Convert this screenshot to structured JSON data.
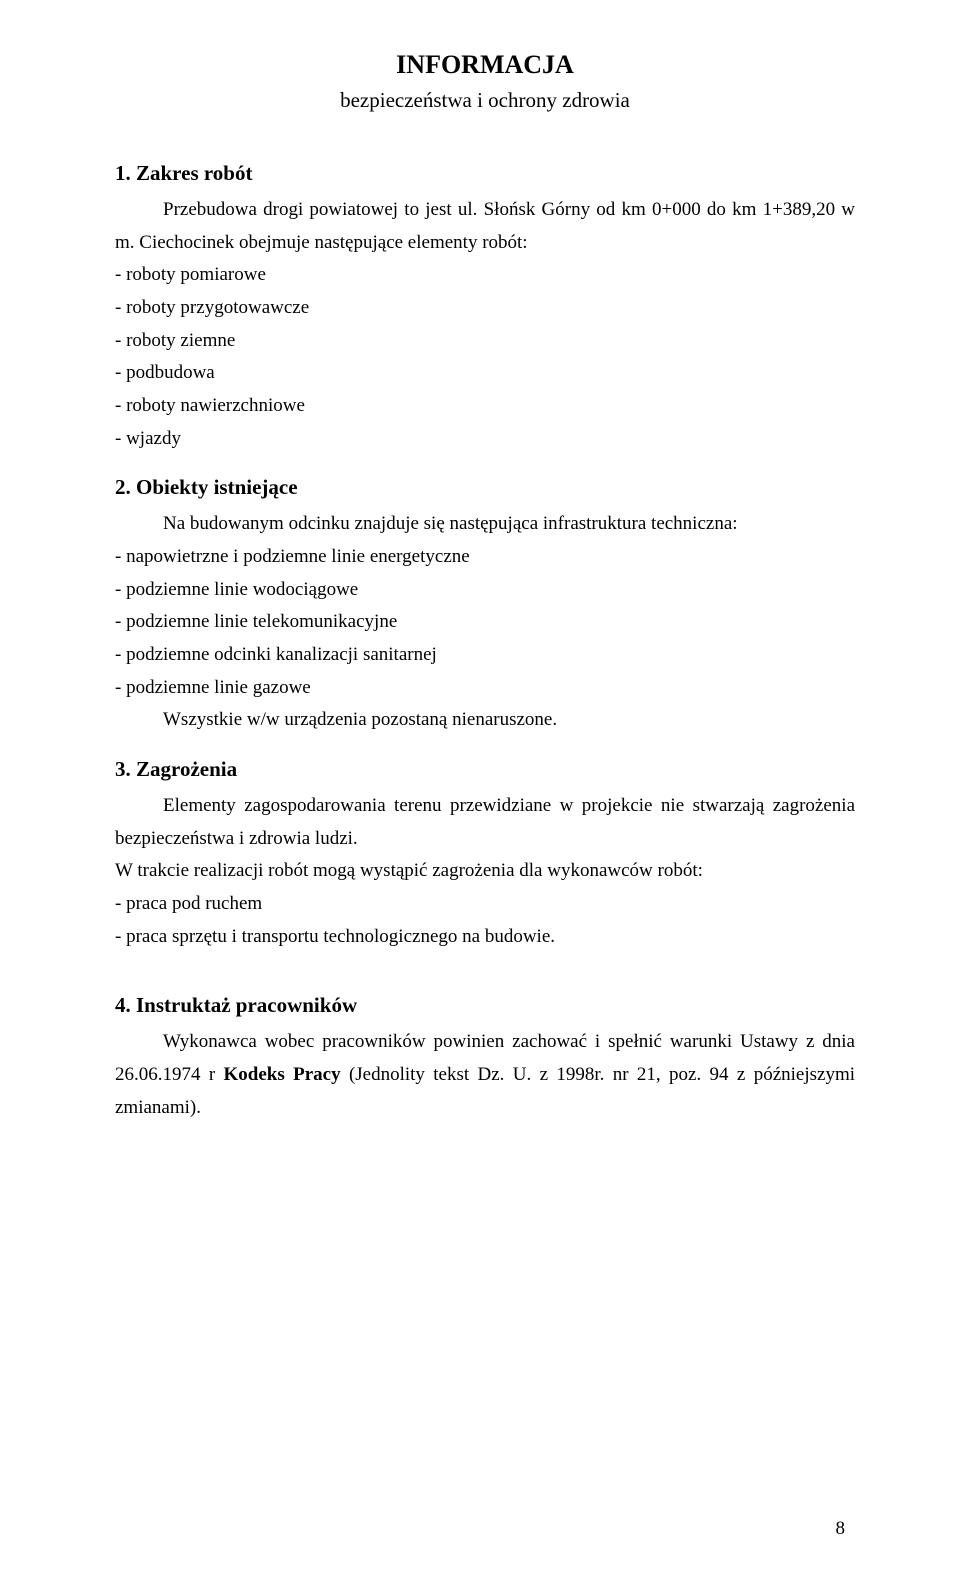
{
  "title": "INFORMACJA",
  "subtitle": "bezpieczeństwa i ochrony zdrowia",
  "sections": {
    "s1": {
      "heading": "1. Zakres robót",
      "intro": "Przebudowa drogi powiatowej to jest ul. Słońsk Górny od km 0+000 do km 1+389,20 w m. Ciechocinek obejmuje następujące elementy robót:",
      "items": [
        "- roboty pomiarowe",
        "- roboty przygotowawcze",
        "- roboty ziemne",
        "- podbudowa",
        "- roboty nawierzchniowe",
        "- wjazdy"
      ]
    },
    "s2": {
      "heading": "2. Obiekty istniejące",
      "intro": "Na budowanym odcinku znajduje się następująca infrastruktura techniczna:",
      "items": [
        "- napowietrzne i podziemne linie  energetyczne",
        "- podziemne linie wodociągowe",
        "- podziemne linie telekomunikacyjne",
        "- podziemne odcinki kanalizacji sanitarnej",
        "- podziemne linie gazowe"
      ],
      "closing": "Wszystkie w/w urządzenia pozostaną nienaruszone."
    },
    "s3": {
      "heading": "3. Zagrożenia",
      "para1": "Elementy zagospodarowania terenu przewidziane w projekcie nie stwarzają zagrożenia bezpieczeństwa i zdrowia ludzi.",
      "para2": "W trakcie realizacji robót mogą wystąpić zagrożenia dla wykonawców robót:",
      "items": [
        "- praca pod ruchem",
        "- praca sprzętu i transportu technologicznego na budowie."
      ]
    },
    "s4": {
      "heading": "4. Instruktaż pracowników",
      "para": "Wykonawca wobec pracowników powinien zachować i spełnić warunki Ustawy z dnia 26.06.1974 r Kodeks Pracy (Jednolity tekst Dz. U. z 1998r. nr 21, poz. 94 z późniejszymi zmianami)."
    }
  },
  "page_number": "8",
  "colors": {
    "text": "#000000",
    "background": "#ffffff"
  },
  "typography": {
    "title_fontsize": 26,
    "subtitle_fontsize": 21,
    "heading_fontsize": 21,
    "body_fontsize": 19
  }
}
